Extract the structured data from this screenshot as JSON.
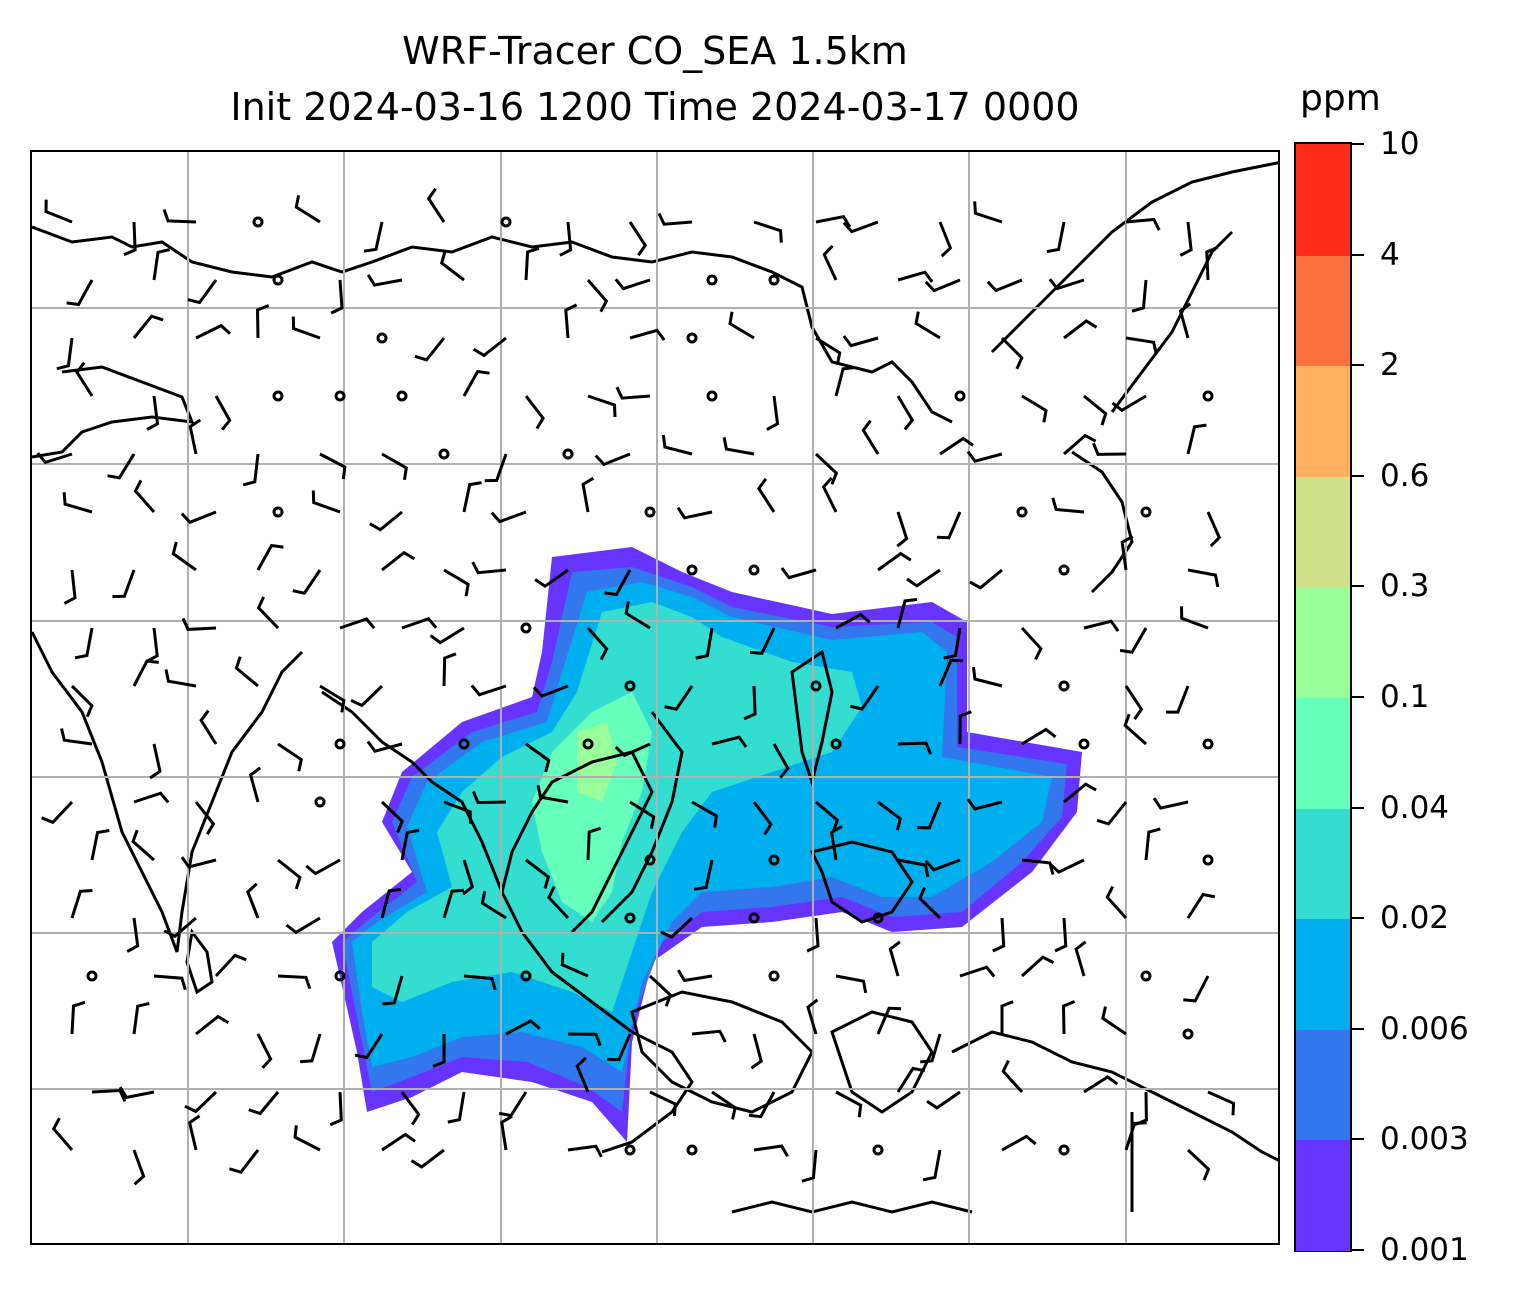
{
  "title": {
    "line1": "WRF-Tracer CO_SEA 1.5km",
    "line2": "Init 2024-03-16 1200 Time 2024-03-17 0000"
  },
  "colorbar": {
    "unit": "ppm",
    "levels": [
      "0.001",
      "0.003",
      "0.006",
      "0.02",
      "0.04",
      "0.1",
      "0.3",
      "0.6",
      "2",
      "4",
      "10"
    ],
    "colors": [
      "#6633ff",
      "#3377ee",
      "#00b0ee",
      "#33ddd0",
      "#66ffbb",
      "#99ff99",
      "#d0e088",
      "#ffb060",
      "#ff7040",
      "#ff2a18"
    ]
  },
  "map": {
    "variable": "CO_SEA tracer concentration with wind barbs",
    "gridlines": true
  }
}
